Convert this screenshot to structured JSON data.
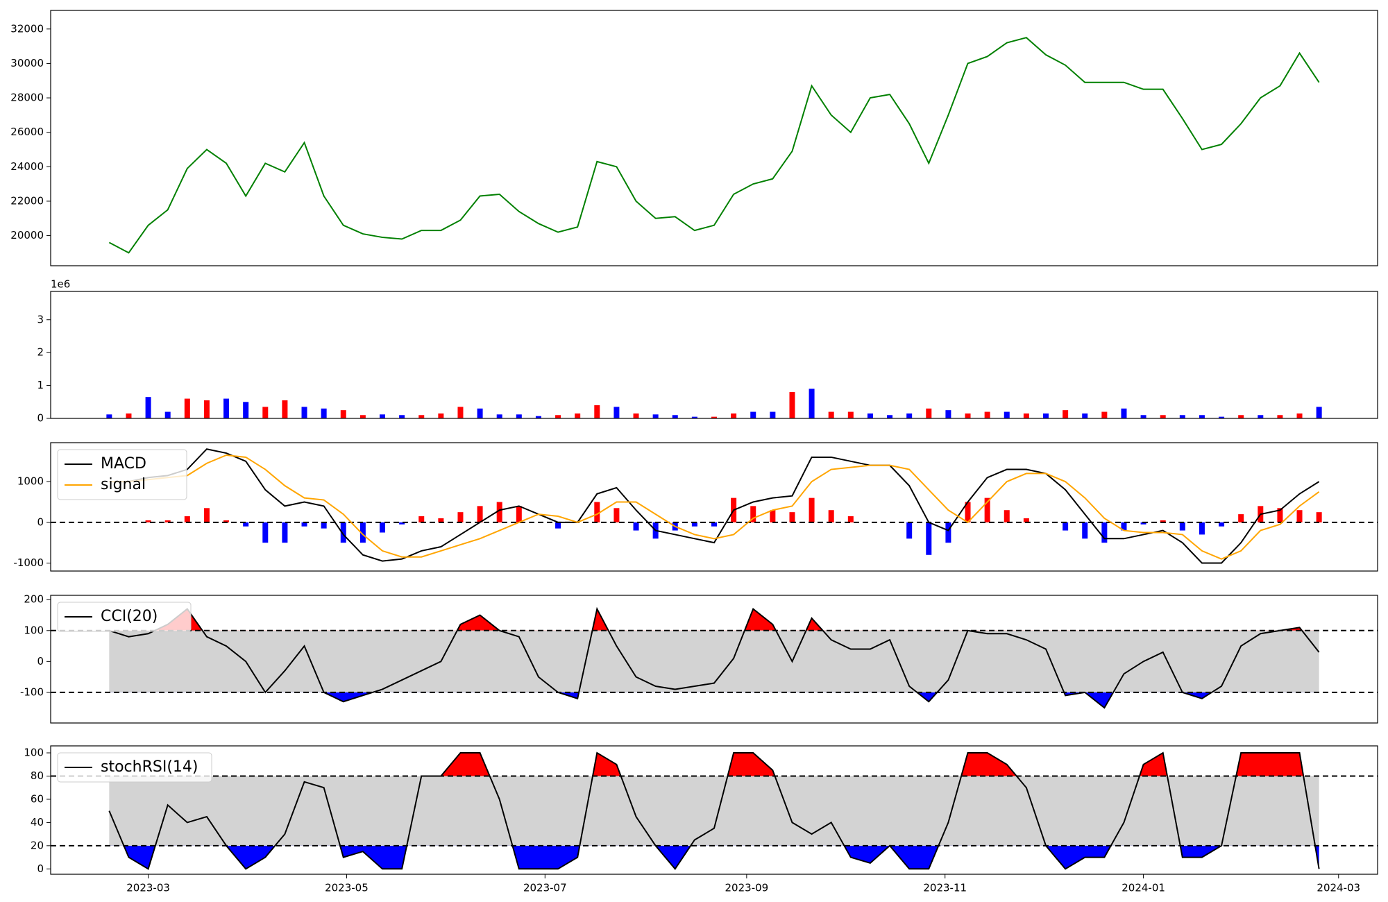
{
  "chart_data": [
    {
      "type": "line",
      "x": [
        0,
        6,
        12,
        18,
        24,
        30,
        36,
        42,
        48,
        54,
        60,
        66,
        72,
        78,
        84,
        90,
        96,
        102,
        108,
        114,
        120,
        126,
        132,
        138,
        144,
        150,
        156,
        162,
        168,
        174,
        180,
        186,
        192,
        198,
        204,
        210,
        216,
        222,
        228,
        234,
        240,
        246,
        252,
        258,
        264,
        270,
        276,
        282,
        288,
        294,
        300,
        306,
        312,
        318,
        324,
        330,
        336,
        342,
        348,
        354,
        360,
        366,
        372
      ],
      "values": [
        19600,
        19000,
        20600,
        21500,
        23900,
        25000,
        24200,
        22300,
        24200,
        23700,
        25400,
        22300,
        20600,
        20100,
        19900,
        19800,
        20300,
        20300,
        20900,
        22300,
        22400,
        21400,
        20700,
        20200,
        20500,
        24300,
        24000,
        22000,
        21000,
        21100,
        20300,
        20600,
        22400,
        23000,
        23300,
        24900,
        28700,
        27000,
        26000,
        28000,
        28200,
        26500,
        24200,
        27000,
        30000,
        30400,
        31200,
        31500,
        30500,
        29900,
        28900,
        28900,
        28900,
        28500,
        28500,
        26800,
        25000,
        25300,
        26500,
        28000,
        28700,
        30600,
        28900
      ],
      "color": "green",
      "xlim": [
        -18,
        390
      ],
      "ylim": [
        18250,
        33080
      ],
      "yticks": [
        20000,
        22000,
        24000,
        26000,
        28000,
        30000,
        32000
      ]
    },
    {
      "type": "bar",
      "x": [
        0,
        6,
        12,
        18,
        24,
        30,
        36,
        42,
        48,
        54,
        60,
        66,
        72,
        78,
        84,
        90,
        96,
        102,
        108,
        114,
        120,
        126,
        132,
        138,
        144,
        150,
        156,
        162,
        168,
        174,
        180,
        186,
        192,
        198,
        204,
        210,
        216,
        222,
        228,
        234,
        240,
        246,
        252,
        258,
        264,
        270,
        276,
        282,
        288,
        294,
        300,
        306,
        312,
        318,
        324,
        330,
        336,
        342,
        348,
        354,
        360,
        366,
        372
      ],
      "values": [
        0.12,
        0.15,
        0.65,
        0.2,
        0.6,
        0.55,
        0.6,
        0.5,
        0.35,
        0.55,
        0.35,
        0.3,
        0.25,
        0.1,
        0.12,
        0.1,
        0.1,
        0.15,
        0.35,
        0.3,
        0.12,
        0.12,
        0.07,
        0.1,
        0.15,
        0.4,
        0.35,
        0.15,
        0.12,
        0.1,
        0.05,
        0.05,
        0.15,
        0.2,
        0.2,
        0.8,
        0.9,
        0.2,
        0.2,
        0.15,
        0.1,
        0.15,
        0.3,
        0.25,
        0.15,
        0.2,
        0.2,
        0.15,
        0.15,
        0.25,
        0.15,
        0.2,
        0.3,
        0.1,
        0.1,
        0.1,
        0.1,
        0.05,
        0.1,
        0.1,
        0.1,
        0.15,
        0.35
      ],
      "colors": [
        "blue",
        "red",
        "blue",
        "blue",
        "red",
        "red",
        "blue",
        "blue",
        "red",
        "red",
        "blue",
        "blue",
        "red",
        "red",
        "blue",
        "blue",
        "red",
        "red",
        "red",
        "blue",
        "blue",
        "blue",
        "blue",
        "red",
        "red",
        "red",
        "blue",
        "red",
        "blue",
        "blue",
        "blue",
        "red",
        "red",
        "blue",
        "blue",
        "red",
        "blue",
        "red",
        "red",
        "blue",
        "blue",
        "blue",
        "red",
        "blue",
        "red",
        "red",
        "blue",
        "red",
        "blue",
        "red",
        "blue",
        "red",
        "blue",
        "blue",
        "red",
        "blue",
        "blue",
        "blue",
        "red",
        "blue",
        "red",
        "red",
        "blue"
      ],
      "offset_text": "1e6",
      "xlim": [
        -18,
        390
      ],
      "ylim": [
        0,
        3.86
      ],
      "yticks": [
        0,
        1,
        2,
        3
      ]
    },
    {
      "type": "macd",
      "x": [
        0,
        6,
        12,
        18,
        24,
        30,
        36,
        42,
        48,
        54,
        60,
        66,
        72,
        78,
        84,
        90,
        96,
        102,
        108,
        114,
        120,
        126,
        132,
        138,
        144,
        150,
        156,
        162,
        168,
        174,
        180,
        186,
        192,
        198,
        204,
        210,
        216,
        222,
        228,
        234,
        240,
        246,
        252,
        258,
        264,
        270,
        276,
        282,
        288,
        294,
        300,
        306,
        312,
        318,
        324,
        330,
        336,
        342,
        348,
        354,
        360,
        366,
        372
      ],
      "series": [
        {
          "name": "MACD",
          "color": "black",
          "values": [
            1000,
            1000,
            1100,
            1150,
            1300,
            1800,
            1700,
            1500,
            800,
            400,
            500,
            400,
            -300,
            -800,
            -950,
            -900,
            -700,
            -600,
            -300,
            0,
            300,
            400,
            200,
            0,
            0,
            700,
            850,
            300,
            -200,
            -300,
            -400,
            -500,
            300,
            500,
            600,
            650,
            1600,
            1600,
            1500,
            1400,
            1400,
            900,
            0,
            -200,
            500,
            1100,
            1300,
            1300,
            1200,
            800,
            200,
            -400,
            -400,
            -300,
            -200,
            -500,
            -1000,
            -1000,
            -500,
            200,
            300,
            700,
            1000
          ]
        },
        {
          "name": "signal",
          "color": "orange",
          "values": [
            1000,
            1000,
            1050,
            1100,
            1150,
            1450,
            1650,
            1600,
            1300,
            900,
            600,
            550,
            200,
            -300,
            -700,
            -850,
            -850,
            -700,
            -550,
            -400,
            -200,
            0,
            200,
            150,
            0,
            200,
            500,
            500,
            200,
            -100,
            -300,
            -400,
            -300,
            100,
            300,
            400,
            1000,
            1300,
            1350,
            1400,
            1400,
            1300,
            800,
            300,
            0,
            500,
            1000,
            1200,
            1200,
            1000,
            600,
            100,
            -200,
            -250,
            -250,
            -300,
            -700,
            -900,
            -700,
            -200,
            -50,
            400,
            750
          ]
        }
      ],
      "histogram": {
        "values": [
          0,
          0,
          50,
          50,
          150,
          350,
          50,
          -100,
          -500,
          -500,
          -100,
          -150,
          -500,
          -500,
          -250,
          -50,
          150,
          100,
          250,
          400,
          500,
          400,
          0,
          -150,
          0,
          500,
          350,
          -200,
          -400,
          -200,
          -100,
          -100,
          600,
          400,
          300,
          250,
          600,
          300,
          150,
          0,
          0,
          -400,
          -800,
          -500,
          500,
          600,
          300,
          100,
          0,
          -200,
          -400,
          -500,
          -200,
          -50,
          50,
          -200,
          -300,
          -100,
          200,
          400,
          350,
          300,
          250
        ],
        "positive_color": "red",
        "negative_color": "blue"
      },
      "hlines": [
        0
      ],
      "legend": "upper left",
      "xlim": [
        -18,
        390
      ],
      "ylim": [
        -1196,
        1957
      ],
      "yticks": [
        -1000,
        0,
        1000
      ]
    },
    {
      "type": "oscillator",
      "x": [
        0,
        6,
        12,
        18,
        24,
        30,
        36,
        42,
        48,
        54,
        60,
        66,
        72,
        78,
        84,
        90,
        96,
        102,
        108,
        114,
        120,
        126,
        132,
        138,
        144,
        150,
        156,
        162,
        168,
        174,
        180,
        186,
        192,
        198,
        204,
        210,
        216,
        222,
        228,
        234,
        240,
        246,
        252,
        258,
        264,
        270,
        276,
        282,
        288,
        294,
        300,
        306,
        312,
        318,
        324,
        330,
        336,
        342,
        348,
        354,
        360,
        366,
        372
      ],
      "series": [
        {
          "name": "CCI(20)",
          "color": "black",
          "values": [
            100,
            80,
            90,
            120,
            170,
            80,
            50,
            0,
            -100,
            -30,
            50,
            -100,
            -130,
            -110,
            -90,
            -60,
            -30,
            0,
            120,
            150,
            100,
            80,
            -50,
            -100,
            -120,
            170,
            50,
            -50,
            -80,
            -90,
            -80,
            -70,
            10,
            170,
            120,
            0,
            140,
            70,
            40,
            40,
            70,
            -80,
            -130,
            -60,
            100,
            90,
            90,
            70,
            40,
            -110,
            -100,
            -150,
            -40,
            0,
            30,
            -100,
            -120,
            -80,
            50,
            90,
            100,
            110,
            30
          ]
        }
      ],
      "levels": [
        -100,
        100
      ],
      "upper_fill": "red",
      "lower_fill": "blue",
      "band_fill": "lightgray",
      "legend": "upper left",
      "xlim": [
        -18,
        390
      ],
      "ylim": [
        -199,
        214
      ],
      "yticks": [
        -100,
        0,
        100,
        200
      ]
    },
    {
      "type": "oscillator",
      "x": [
        0,
        6,
        12,
        18,
        24,
        30,
        36,
        42,
        48,
        54,
        60,
        66,
        72,
        78,
        84,
        90,
        96,
        102,
        108,
        114,
        120,
        126,
        132,
        138,
        144,
        150,
        156,
        162,
        168,
        174,
        180,
        186,
        192,
        198,
        204,
        210,
        216,
        222,
        228,
        234,
        240,
        246,
        252,
        258,
        264,
        270,
        276,
        282,
        288,
        294,
        300,
        306,
        312,
        318,
        324,
        330,
        336,
        342,
        348,
        354,
        360,
        366,
        372
      ],
      "series": [
        {
          "name": "stochRSI(14)",
          "color": "black",
          "values": [
            50,
            10,
            0,
            55,
            40,
            45,
            20,
            0,
            10,
            30,
            75,
            70,
            10,
            15,
            0,
            0,
            80,
            80,
            100,
            100,
            60,
            0,
            0,
            0,
            10,
            100,
            90,
            45,
            20,
            0,
            25,
            35,
            100,
            100,
            85,
            40,
            30,
            40,
            10,
            5,
            20,
            0,
            0,
            40,
            100,
            100,
            90,
            70,
            20,
            0,
            10,
            10,
            40,
            90,
            100,
            10,
            10,
            20,
            100,
            100,
            100,
            100,
            0
          ]
        }
      ],
      "levels": [
        20,
        80
      ],
      "upper_fill": "red",
      "lower_fill": "blue",
      "band_fill": "lightgray",
      "legend": "upper left",
      "xlim": [
        -18,
        390
      ],
      "ylim": [
        -4.6,
        106
      ],
      "yticks": [
        0,
        20,
        40,
        60,
        80,
        100
      ],
      "xticks": [
        {
          "value": 12,
          "label": "2023-03"
        },
        {
          "value": 73,
          "label": "2023-05"
        },
        {
          "value": 134,
          "label": "2023-07"
        },
        {
          "value": 196,
          "label": "2023-09"
        },
        {
          "value": 257,
          "label": "2023-11"
        },
        {
          "value": 318,
          "label": "2024-01"
        },
        {
          "value": 378,
          "label": "2024-03"
        }
      ]
    }
  ]
}
